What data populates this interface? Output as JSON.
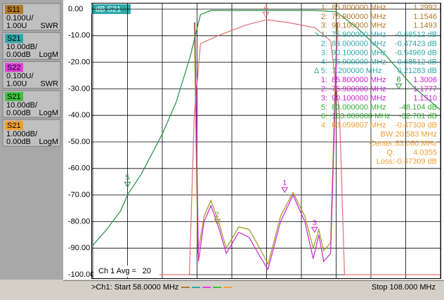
{
  "sidebar": [
    {
      "name": "S11",
      "color": "#b07828",
      "scale": "0.100U/",
      "ref": "1.00U",
      "format": "SWR"
    },
    {
      "name": "S21",
      "color": "#30a8a8",
      "scale": "10.00dB/",
      "ref": "0.00dB",
      "format": "LogM"
    },
    {
      "name": "S22",
      "color": "#e040e0",
      "scale": "0.100U/",
      "ref": "1.00U",
      "format": "SWR"
    },
    {
      "name": "S21",
      "color": "#40c040",
      "scale": "10.00dB/",
      "ref": "0.00dB",
      "format": "LogM"
    },
    {
      "name": "S21",
      "color": "#f0a030",
      "scale": "1.000dB/",
      "ref": "0.00dB",
      "format": "LogM"
    }
  ],
  "plot": {
    "title": "dB S21",
    "xlim": [
      58,
      108
    ],
    "xticks": [
      58,
      63,
      68,
      73,
      78,
      83,
      88,
      93,
      98,
      103,
      108
    ],
    "ylim": [
      -100,
      0
    ],
    "yticks": [
      {
        "value": 0,
        "label": "0.00"
      },
      {
        "value": -10,
        "label": "-10.00"
      },
      {
        "value": -20,
        "label": "-20.00"
      },
      {
        "value": -30,
        "label": "-30.00"
      },
      {
        "value": -40,
        "label": "-40.00"
      },
      {
        "value": -50,
        "label": "-50.00"
      },
      {
        "value": -60,
        "label": "-60.00"
      },
      {
        "value": -70,
        "label": "-70.00"
      },
      {
        "value": -80,
        "label": "-80.00"
      },
      {
        "value": -90,
        "label": "-90.00"
      },
      {
        "value": -100,
        "label": "-100.00"
      }
    ],
    "series": [
      {
        "color": "#e07070",
        "x": [
          58,
          71.9,
          72.6,
          73.5,
          76,
          80,
          83,
          86,
          90,
          92.2,
          93.5,
          94.2,
          108
        ],
        "values": [
          -100,
          -100,
          -40,
          -13,
          -10,
          -6,
          -4,
          -5,
          -7,
          -12,
          -40,
          -100,
          -100
        ]
      },
      {
        "color": "#9a9a20",
        "x": [
          72.6,
          73.1,
          74,
          75,
          76.2,
          77.2,
          79,
          80.5,
          82,
          83.2,
          85,
          86.8,
          88.5,
          89.7,
          90.5,
          91.2,
          92.2,
          93.1
        ],
        "values": [
          -5,
          -92,
          -78,
          -72,
          -81,
          -90,
          -82,
          -83,
          -90,
          -96,
          -78,
          -69,
          -78,
          -90,
          -83,
          -91,
          -88,
          -5
        ]
      },
      {
        "color": "#d020d0",
        "x": [
          72.7,
          73.2,
          74,
          75,
          76.2,
          77.2,
          79,
          80.5,
          82,
          83.2,
          85,
          86.8,
          88.5,
          89.7,
          90.5,
          91.2,
          92.2,
          93.2
        ],
        "values": [
          -5,
          -95,
          -80,
          -74,
          -83,
          -92,
          -84,
          -86,
          -93,
          -98,
          -80,
          -70,
          -80,
          -94,
          -85,
          -95,
          -92,
          -5
        ]
      },
      {
        "color": "#209040",
        "x": [
          58,
          60,
          62,
          63,
          65,
          68,
          70,
          72,
          73.5,
          75,
          90,
          93,
          96,
          100,
          104,
          108
        ],
        "values": [
          -89,
          -83,
          -76,
          -70,
          -62,
          -47,
          -35,
          -18,
          -2,
          -0.5,
          -0.5,
          -1,
          -7,
          -17,
          -29,
          -38
        ]
      }
    ],
    "markers": [
      {
        "label": "1",
        "x": 85.6,
        "y": -69,
        "color": "#d020d0"
      },
      {
        "label": "2",
        "x": 75.9,
        "y": -81,
        "color": "#9a9a20"
      },
      {
        "label": "3",
        "x": 89.9,
        "y": -84,
        "color": "#d020d0"
      },
      {
        "label": "4",
        "x": 82.9,
        "y": -3,
        "color": "#e07070"
      },
      {
        "label": "5",
        "x": 63,
        "y": -67,
        "color": "#209040"
      },
      {
        "label": "6",
        "x": 102,
        "y": -30,
        "color": "#209040"
      }
    ]
  },
  "marker_table": [
    {
      "id": "1:",
      "freq": "85.800000 MHz",
      "value": "1.2992",
      "color": "#b07828"
    },
    {
      "id": "2:",
      "freq": "75.900000 MHz",
      "value": "1.1546",
      "color": "#b07828"
    },
    {
      "id": "3:",
      "freq": "90.100000 MHz",
      "value": "1.1493",
      "color": "#b07828"
    },
    {
      "id": "> 1:",
      "freq": "75.900000 MHz",
      "value": "-0.68512 dB",
      "color": "#30a8a8"
    },
    {
      "id": "2:",
      "freq": "83.000000 MHz",
      "value": "-0.47423 dB",
      "color": "#30a8a8"
    },
    {
      "id": "3:",
      "freq": "90.100000 MHz",
      "value": "-0.54969 dB",
      "color": "#30a8a8"
    },
    {
      "id": "4:",
      "freq": "75.900000 MHz",
      "value": "-0.68512 dB",
      "color": "#30a8a8"
    },
    {
      "id": "Δ 5:",
      "freq": "7.200000 MHz",
      "value": "0.21283 dB",
      "color": "#30a8a8"
    },
    {
      "id": "1:",
      "freq": "85.800000 MHz",
      "value": "1.3006",
      "color": "#d020d0"
    },
    {
      "id": "2:",
      "freq": "75.900000 MHz",
      "value": "1.1777",
      "color": "#d020d0"
    },
    {
      "id": "3:",
      "freq": "90.100000 MHz",
      "value": "1.1510",
      "color": "#d020d0"
    },
    {
      "id": "5:",
      "freq": "83.000000 MHz",
      "value": "-48.104 dB",
      "color": "#30b030"
    },
    {
      "id": "6:",
      "freq": "103.000000 MHz",
      "value": "-32.781 dB",
      "color": "#30b030"
    },
    {
      "id": "4:",
      "freq": "83.059807 MHz",
      "value": "-0.47309 dB",
      "color": "#f0a030"
    }
  ],
  "bandwidth_summary": [
    {
      "label": "BW:",
      "value": "20.583 MHz"
    },
    {
      "label": "Center:",
      "value": "83.060 MHz"
    },
    {
      "label": "Q:",
      "value": "4.0355"
    },
    {
      "label": "Loss:",
      "value": "-0.47309 dB"
    }
  ],
  "footer": {
    "avg_label": "Ch 1 Avg =",
    "avg_value": "20",
    "start": ">Ch1: Start 58.0000 MHz",
    "stop": "Stop 108.000 MHz"
  }
}
